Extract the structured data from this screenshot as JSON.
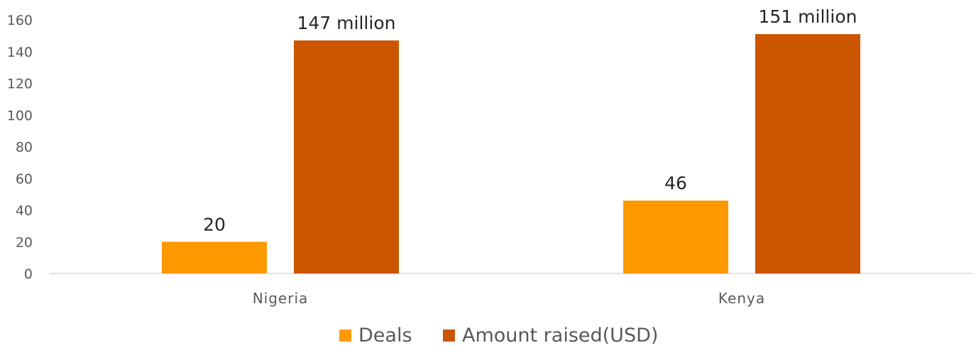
{
  "chart_data": {
    "type": "bar",
    "categories": [
      "Nigeria",
      "Kenya"
    ],
    "series": [
      {
        "name": "Deals",
        "values": [
          20,
          46
        ],
        "labels": [
          "20",
          "46"
        ],
        "color": "#FF9900"
      },
      {
        "name": "Amount raised(USD)",
        "values": [
          147,
          151
        ],
        "labels": [
          "147 million",
          "151 million"
        ],
        "color": "#CC5500"
      }
    ],
    "ylim": [
      0,
      160
    ],
    "yticks": [
      0,
      20,
      40,
      60,
      80,
      100,
      120,
      140,
      160
    ],
    "grid": false,
    "legend": "bottom",
    "axis_color": "#D9D9D9"
  }
}
